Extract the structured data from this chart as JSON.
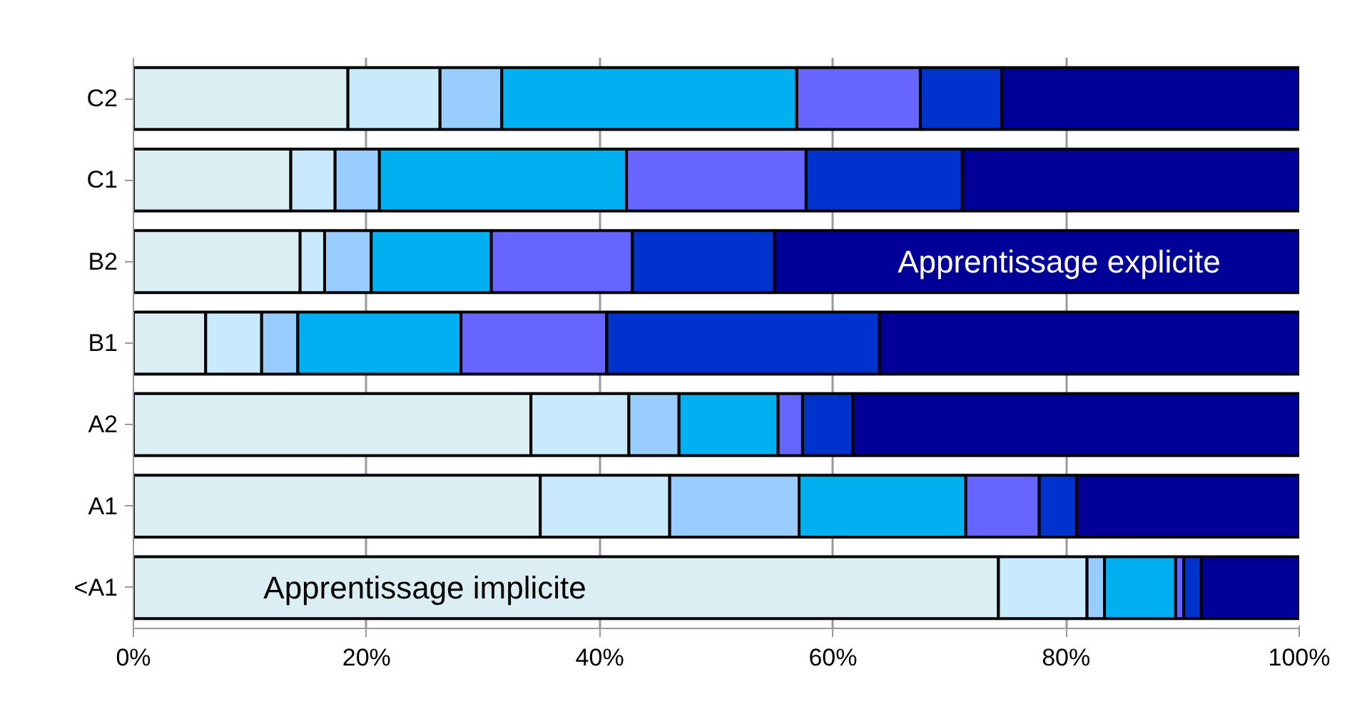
{
  "chart_data": {
    "type": "bar",
    "orientation": "horizontal",
    "stacked": true,
    "categories": [
      "C2",
      "C1",
      "B2",
      "B1",
      "A2",
      "A1",
      "<A1"
    ],
    "series": [
      {
        "color": "#daeef3",
        "values": [
          18.4,
          13.5,
          14.3,
          6.2,
          34.1,
          34.9,
          74.2
        ]
      },
      {
        "color": "#c9eafc",
        "values": [
          7.9,
          3.8,
          2.1,
          4.8,
          8.4,
          11.1,
          7.6
        ]
      },
      {
        "color": "#99ccff",
        "values": [
          5.3,
          3.8,
          4.0,
          3.1,
          4.3,
          11.1,
          1.5
        ]
      },
      {
        "color": "#00b0f0",
        "values": [
          25.3,
          21.2,
          10.3,
          14.0,
          8.5,
          14.3,
          6.1
        ]
      },
      {
        "color": "#6666ff",
        "values": [
          10.6,
          15.4,
          12.1,
          12.5,
          2.1,
          6.3,
          0.7
        ]
      },
      {
        "color": "#0033cc",
        "values": [
          7.0,
          13.4,
          12.2,
          23.4,
          4.3,
          3.2,
          1.5
        ]
      },
      {
        "color": "#000099",
        "values": [
          25.5,
          28.9,
          45.0,
          36.0,
          38.3,
          19.1,
          8.4
        ]
      }
    ],
    "xlim": [
      0,
      100
    ],
    "xticks": [
      {
        "value": 0,
        "label": "0%"
      },
      {
        "value": 20,
        "label": "20%"
      },
      {
        "value": 40,
        "label": "40%"
      },
      {
        "value": 60,
        "label": "60%"
      },
      {
        "value": 80,
        "label": "80%"
      },
      {
        "value": 100,
        "label": "100%"
      }
    ],
    "grid": "x",
    "annotations": [
      {
        "text": "Apprentissage implicite",
        "x": 25,
        "y": "<A1"
      },
      {
        "text": "Apprentissage explicite",
        "x": 79.4,
        "y": "B2"
      }
    ]
  }
}
